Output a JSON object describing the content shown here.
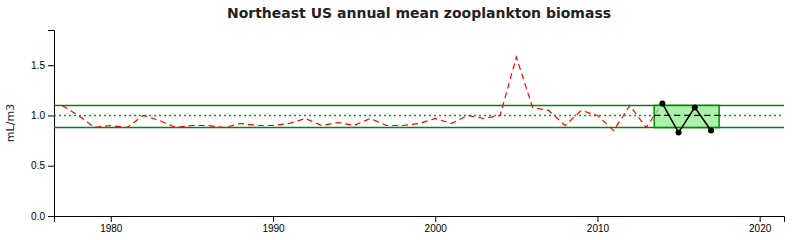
{
  "chart_data": {
    "type": "line",
    "title": "Northeast US annual mean zooplankton biomass",
    "y_label": "mL/m3",
    "x": [
      1977,
      1978,
      1979,
      1980,
      1981,
      1982,
      1983,
      1984,
      1985,
      1986,
      1987,
      1988,
      1989,
      1990,
      1991,
      1992,
      1993,
      1994,
      1995,
      1996,
      1997,
      1998,
      1999,
      2000,
      2001,
      2002,
      2003,
      2004,
      2005,
      2006,
      2007,
      2008,
      2009,
      2010,
      2011,
      2012,
      2013,
      2014,
      2015,
      2016,
      2017
    ],
    "series": [
      {
        "values": [
          1.1,
          1.0,
          0.88,
          0.9,
          0.88,
          1.0,
          0.95,
          0.88,
          0.9,
          0.9,
          0.88,
          0.92,
          0.9,
          0.9,
          0.92,
          0.97,
          0.9,
          0.93,
          0.9,
          0.97,
          0.9,
          0.9,
          0.92,
          0.97,
          0.92,
          1.0,
          0.97,
          1.0,
          1.58,
          1.08,
          1.05,
          0.9,
          1.05,
          1.0,
          0.85,
          1.1,
          0.88,
          1.12,
          0.83,
          1.08,
          0.85
        ],
        "color": "#ff0000",
        "line_style": "dashed"
      },
      {
        "x": [
          2014,
          2015,
          2016,
          2017
        ],
        "values": [
          1.12,
          0.83,
          1.08,
          0.85
        ],
        "color": "#000000",
        "line_style": "solid",
        "marker": "circle"
      }
    ],
    "reference_lines": [
      {
        "value": 1.1,
        "color": "#008800",
        "line_style": "solid"
      },
      {
        "value": 0.88,
        "color": "#008800",
        "line_style": "solid"
      },
      {
        "value": 1.0,
        "color": "#00aa00",
        "line_style": "dotted"
      }
    ],
    "highlight_box": {
      "color": "#90ee90"
    },
    "xlim": [
      1976.5,
      2021.5
    ],
    "ylim": [
      0,
      1.85
    ],
    "xticks": [
      1980,
      1990,
      2000,
      2010,
      2020
    ],
    "yticks": [
      {
        "value": 0,
        "label": "0.0"
      },
      {
        "value": 0.5,
        "label": "0.5"
      },
      {
        "value": 1,
        "label": "1.0"
      },
      {
        "value": 1.5,
        "label": "1.5"
      }
    ],
    "grid": false
  }
}
